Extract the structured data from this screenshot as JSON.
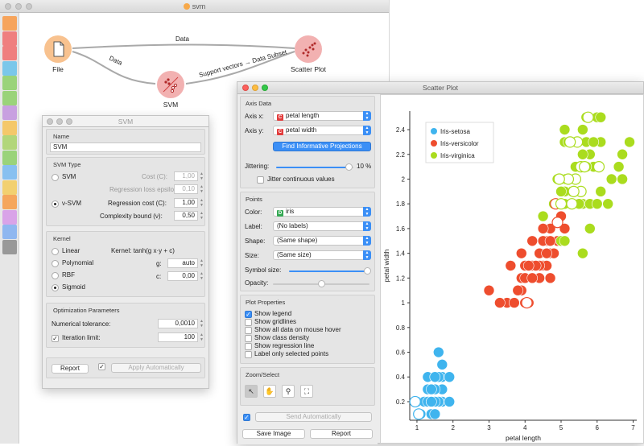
{
  "app": {
    "window_title": "svm"
  },
  "workflow": {
    "nodes": [
      {
        "id": "file",
        "label": "File",
        "icon": "file-icon",
        "color": "#f8c28f"
      },
      {
        "id": "svm",
        "label": "SVM",
        "icon": "svm-icon",
        "color": "#f2b1b1"
      },
      {
        "id": "scatter",
        "label": "Scatter Plot",
        "icon": "scatter-plot-icon",
        "color": "#f2b1b1"
      }
    ],
    "links": [
      {
        "label": "Data"
      },
      {
        "label": "Data"
      },
      {
        "label": "Support vectors → Data Subset"
      }
    ]
  },
  "toolbox": {
    "items": [
      "table-icon",
      "histogram-icon",
      "tree-icon",
      "sieve-icon",
      "cluster-icon",
      "pin-icon",
      "image-icon",
      "heatmap-icon",
      "network-icon",
      "scatter-icon",
      "line-chart-icon",
      "crosshair-icon",
      "graduation-cap-icon",
      "rainbow-icon",
      "database-icon",
      "info-icon"
    ]
  },
  "svm": {
    "title": "SVM",
    "name_section": "Name",
    "name_value": "SVM",
    "type_section": "SVM Type",
    "opt_svm": "SVM",
    "cost_label": "Cost (C):",
    "cost_value": "1,00",
    "epsilon_label": "Regression loss epsilon (ε):",
    "epsilon_value": "0,10",
    "opt_nusvm": "ν-SVM",
    "reg_cost_label": "Regression cost (C):",
    "reg_cost_value": "1,00",
    "complexity_label": "Complexity bound (ν):",
    "complexity_value": "0,50",
    "kernel_section": "Kernel",
    "kernel_linear": "Linear",
    "kernel_poly": "Polynomial",
    "kernel_rbf": "RBF",
    "kernel_sigmoid": "Sigmoid",
    "kernel_formula": "Kernel: tanh(g x·y + c)",
    "g_label": "g:",
    "g_value": "auto",
    "c_label": "c:",
    "c_value": "0,00",
    "opt_section": "Optimization Parameters",
    "tol_label": "Numerical tolerance:",
    "tol_value": "0,0010",
    "iter_label": "Iteration limit:",
    "iter_value": "100",
    "report_label": "Report",
    "apply_label": "Apply Automatically"
  },
  "scatter": {
    "title": "Scatter Plot",
    "axis_section": "Axis Data",
    "axis_x_label": "Axis x:",
    "axis_x_value": "petal length",
    "axis_y_label": "Axis y:",
    "axis_y_value": "petal width",
    "find_btn": "Find Informative Projections",
    "jitter_label": "Jittering:",
    "jitter_value": "10 %",
    "jitter_cont": "Jitter continuous values",
    "points_section": "Points",
    "color_label": "Color:",
    "color_value": "iris",
    "label_label": "Label:",
    "label_value": "(No labels)",
    "shape_label": "Shape:",
    "shape_value": "(Same shape)",
    "size_label": "Size:",
    "size_value": "(Same size)",
    "symbol_label": "Symbol size:",
    "opacity_label": "Opacity:",
    "props_section": "Plot Properties",
    "props": [
      {
        "label": "Show legend",
        "checked": true
      },
      {
        "label": "Show gridlines",
        "checked": false
      },
      {
        "label": "Show all data on mouse hover",
        "checked": false
      },
      {
        "label": "Show class density",
        "checked": false
      },
      {
        "label": "Show regression line",
        "checked": false
      },
      {
        "label": "Label only selected points",
        "checked": false
      }
    ],
    "zoom_section": "Zoom/Select",
    "send_label": "Send Automatically",
    "save_label": "Save Image",
    "report_label": "Report"
  },
  "chart_data": {
    "type": "scatter",
    "xlabel": "petal length",
    "ylabel": "petal width",
    "xlim": [
      0.8,
      7.1
    ],
    "ylim": [
      0.05,
      2.55
    ],
    "xticks": [
      1,
      2,
      3,
      4,
      5,
      6,
      7
    ],
    "yticks": [
      0.2,
      0.4,
      0.6,
      0.8,
      1,
      1.2,
      1.4,
      1.6,
      1.8,
      2,
      2.2,
      2.4
    ],
    "yticklabels": [
      "0.2",
      "0.4",
      "0.6",
      "0.8",
      "1",
      "1.2",
      "1.4",
      "1.6",
      "1.8",
      "2",
      "2.2",
      "2.4"
    ],
    "legend": {
      "position": "top-left"
    },
    "series": [
      {
        "name": "Iris-setosa",
        "color": "#3fb4ee",
        "points": [
          [
            1.4,
            0.2
          ],
          [
            1.4,
            0.2
          ],
          [
            1.3,
            0.2
          ],
          [
            1.5,
            0.2
          ],
          [
            1.4,
            0.2
          ],
          [
            1.7,
            0.4
          ],
          [
            1.4,
            0.3
          ],
          [
            1.5,
            0.2
          ],
          [
            1.4,
            0.2
          ],
          [
            1.5,
            0.1
          ],
          [
            1.5,
            0.2
          ],
          [
            1.6,
            0.2
          ],
          [
            1.4,
            0.1
          ],
          [
            1.1,
            0.1
          ],
          [
            1.2,
            0.2
          ],
          [
            1.5,
            0.4
          ],
          [
            1.3,
            0.4
          ],
          [
            1.4,
            0.3
          ],
          [
            1.7,
            0.3
          ],
          [
            1.5,
            0.3
          ],
          [
            1.7,
            0.2
          ],
          [
            1.5,
            0.4
          ],
          [
            1.0,
            0.2
          ],
          [
            1.7,
            0.5
          ],
          [
            1.9,
            0.2
          ],
          [
            1.6,
            0.2
          ],
          [
            1.6,
            0.4
          ],
          [
            1.5,
            0.2
          ],
          [
            1.4,
            0.2
          ],
          [
            1.6,
            0.2
          ],
          [
            1.6,
            0.2
          ],
          [
            1.5,
            0.4
          ],
          [
            1.5,
            0.1
          ],
          [
            1.4,
            0.2
          ],
          [
            1.5,
            0.1
          ],
          [
            1.2,
            0.2
          ],
          [
            1.3,
            0.2
          ],
          [
            1.3,
            0.3
          ],
          [
            1.3,
            0.3
          ],
          [
            1.6,
            0.6
          ],
          [
            1.9,
            0.4
          ],
          [
            1.4,
            0.3
          ],
          [
            1.6,
            0.2
          ],
          [
            1.4,
            0.2
          ],
          [
            1.5,
            0.2
          ],
          [
            1.4,
            0.2
          ]
        ],
        "support_vectors": [
          [
            0.95,
            0.2
          ],
          [
            1.05,
            0.1
          ]
        ]
      },
      {
        "name": "Iris-versicolor",
        "color": "#ee4d2e",
        "points": [
          [
            4.7,
            1.4
          ],
          [
            4.5,
            1.5
          ],
          [
            4.9,
            1.5
          ],
          [
            4.0,
            1.3
          ],
          [
            4.6,
            1.5
          ],
          [
            4.5,
            1.3
          ],
          [
            4.7,
            1.6
          ],
          [
            3.3,
            1.0
          ],
          [
            4.6,
            1.3
          ],
          [
            3.9,
            1.4
          ],
          [
            3.5,
            1.0
          ],
          [
            4.2,
            1.5
          ],
          [
            4.0,
            1.0
          ],
          [
            4.7,
            1.4
          ],
          [
            3.6,
            1.3
          ],
          [
            4.4,
            1.4
          ],
          [
            4.5,
            1.5
          ],
          [
            4.1,
            1.0
          ],
          [
            4.5,
            1.5
          ],
          [
            3.9,
            1.1
          ],
          [
            4.8,
            1.8
          ],
          [
            4.0,
            1.3
          ],
          [
            4.9,
            1.5
          ],
          [
            4.7,
            1.2
          ],
          [
            4.3,
            1.3
          ],
          [
            4.4,
            1.4
          ],
          [
            4.8,
            1.4
          ],
          [
            5.0,
            1.7
          ],
          [
            4.5,
            1.5
          ],
          [
            3.5,
            1.0
          ],
          [
            3.8,
            1.1
          ],
          [
            3.7,
            1.0
          ],
          [
            3.9,
            1.2
          ],
          [
            5.1,
            1.6
          ],
          [
            4.5,
            1.5
          ],
          [
            4.5,
            1.6
          ],
          [
            4.7,
            1.5
          ],
          [
            4.4,
            1.3
          ],
          [
            4.1,
            1.3
          ],
          [
            4.0,
            1.3
          ],
          [
            4.4,
            1.2
          ],
          [
            4.6,
            1.4
          ],
          [
            4.0,
            1.2
          ],
          [
            3.3,
            1.0
          ],
          [
            4.2,
            1.3
          ],
          [
            4.2,
            1.2
          ],
          [
            4.2,
            1.3
          ],
          [
            4.3,
            1.3
          ],
          [
            3.0,
            1.1
          ],
          [
            4.1,
            1.3
          ]
        ],
        "support_vectors": [
          [
            4.05,
            1.0
          ],
          [
            4.85,
            1.8
          ],
          [
            4.9,
            1.65
          ]
        ]
      },
      {
        "name": "Iris-virginica",
        "color": "#aadc1e",
        "points": [
          [
            6.0,
            2.5
          ],
          [
            5.1,
            1.9
          ],
          [
            5.9,
            2.1
          ],
          [
            5.6,
            1.8
          ],
          [
            5.8,
            2.2
          ],
          [
            6.6,
            2.1
          ],
          [
            4.5,
            1.7
          ],
          [
            6.3,
            1.8
          ],
          [
            5.8,
            1.8
          ],
          [
            6.1,
            2.5
          ],
          [
            5.1,
            2.0
          ],
          [
            5.3,
            1.9
          ],
          [
            5.5,
            2.1
          ],
          [
            5.0,
            2.0
          ],
          [
            5.1,
            2.4
          ],
          [
            5.3,
            2.3
          ],
          [
            5.5,
            1.8
          ],
          [
            6.7,
            2.2
          ],
          [
            6.9,
            2.3
          ],
          [
            5.0,
            1.5
          ],
          [
            5.7,
            2.3
          ],
          [
            4.9,
            2.0
          ],
          [
            6.7,
            2.0
          ],
          [
            4.9,
            1.8
          ],
          [
            5.7,
            2.1
          ],
          [
            6.0,
            1.8
          ],
          [
            4.8,
            1.8
          ],
          [
            4.9,
            1.8
          ],
          [
            5.6,
            2.1
          ],
          [
            5.8,
            1.6
          ],
          [
            6.1,
            1.9
          ],
          [
            6.4,
            2.0
          ],
          [
            5.6,
            2.2
          ],
          [
            5.1,
            1.5
          ],
          [
            5.6,
            1.4
          ],
          [
            6.1,
            2.3
          ],
          [
            5.6,
            2.4
          ],
          [
            5.5,
            1.8
          ],
          [
            4.8,
            1.8
          ],
          [
            5.4,
            2.1
          ],
          [
            5.6,
            2.4
          ],
          [
            5.1,
            2.3
          ],
          [
            5.1,
            1.9
          ],
          [
            5.9,
            2.3
          ],
          [
            5.7,
            2.5
          ],
          [
            5.2,
            2.3
          ],
          [
            5.0,
            1.9
          ],
          [
            5.2,
            2.0
          ],
          [
            5.4,
            2.3
          ],
          [
            5.1,
            1.8
          ]
        ],
        "support_vectors": [
          [
            5.75,
            2.5
          ],
          [
            5.45,
            2.3
          ],
          [
            5.25,
            2.3
          ],
          [
            5.55,
            2.1
          ],
          [
            5.65,
            2.1
          ],
          [
            5.4,
            2.0
          ],
          [
            5.2,
            2.0
          ],
          [
            4.95,
            2.0
          ],
          [
            5.0,
            1.8
          ],
          [
            5.3,
            1.8
          ],
          [
            5.55,
            1.9
          ],
          [
            5.35,
            1.9
          ],
          [
            6.05,
            2.1
          ]
        ]
      }
    ]
  }
}
